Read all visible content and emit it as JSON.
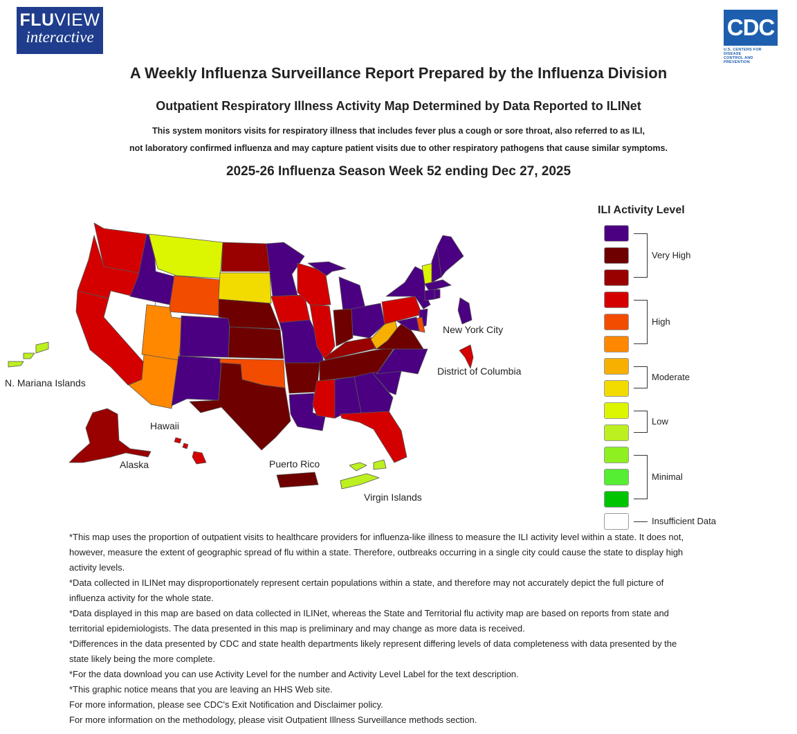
{
  "header": {
    "fluview_logo_bold": "FLU",
    "fluview_logo_rest": "VIEW",
    "fluview_logo_sub": "interactive",
    "cdc_logo_text": "CDC",
    "cdc_logo_sub_1": "U.S. CENTERS FOR DISEASE",
    "cdc_logo_sub_2": "CONTROL AND PREVENTION",
    "title": "A Weekly Influenza Surveillance Report Prepared by the Influenza Division",
    "subtitle": "Outpatient Respiratory Illness Activity Map Determined by Data Reported to ILINet",
    "description_1": "This system monitors visits for respiratory illness that includes fever plus a cough or sore throat, also referred to as ILI,",
    "description_2": "not laboratory confirmed influenza and may capture patient visits due to other respiratory pathogens that cause similar symptoms.",
    "season": "2025-26 Influenza Season Week 52 ending Dec 27, 2025"
  },
  "map": {
    "labels": {
      "new_york_city": "New York City",
      "district_of_columbia": "District of Columbia",
      "n_mariana_islands": "N. Mariana Islands",
      "hawaii": "Hawaii",
      "alaska": "Alaska",
      "puerto_rico": "Puerto Rico",
      "virgin_islands": "Virgin Islands"
    },
    "level_colors": {
      "13": "#4b0082",
      "12": "#6e0000",
      "11": "#990000",
      "10": "#d40000",
      "9": "#f24c00",
      "8": "#ff8800",
      "7": "#f7b000",
      "6": "#f2dc00",
      "5": "#dcf500",
      "4": "#bcf020",
      "3": "#8ef020",
      "2": "#55ee33",
      "1": "#00c400",
      "0": "#ffffff"
    },
    "state_levels": {
      "WA": 10,
      "OR": 10,
      "CA": 10,
      "NV": 0,
      "ID": 13,
      "MT": 5,
      "WY": 9,
      "UT": 8,
      "AZ": 8,
      "CO": 13,
      "NM": 13,
      "ND": 11,
      "SD": 6,
      "NE": 12,
      "KS": 12,
      "OK": 9,
      "TX": 12,
      "MN": 13,
      "IA": 10,
      "MO": 13,
      "AR": 12,
      "LA": 13,
      "WI": 10,
      "IL": 10,
      "MS": 10,
      "MI": 13,
      "IN": 12,
      "OH": 13,
      "KY": 11,
      "TN": 12,
      "AL": 13,
      "GA": 13,
      "FL": 10,
      "SC": 13,
      "NC": 13,
      "VA": 12,
      "WV": 7,
      "PA": 10,
      "NY": 13,
      "VT": 5,
      "NH": 13,
      "ME": 13,
      "MA": 13,
      "CT": 13,
      "RI": 13,
      "NJ": 13,
      "DE": 9,
      "MD": 13,
      "NYC": 13,
      "DC": 10,
      "AK": 11,
      "HI": 10,
      "PR": 12,
      "VI": 4,
      "MP": 4
    }
  },
  "legend": {
    "title": "ILI Activity Level",
    "groups": [
      {
        "label": "Very High"
      },
      {
        "label": "High"
      },
      {
        "label": "Moderate"
      },
      {
        "label": "Low"
      },
      {
        "label": "Minimal"
      },
      {
        "label": "Insufficient Data"
      }
    ]
  },
  "notes": [
    "*This map uses the proportion of outpatient visits to healthcare providers for influenza-like illness to measure the ILI activity level within a state. It does not, however, measure the extent of geographic spread of flu within a state. Therefore, outbreaks occurring in a single city could cause the state to display high activity levels.",
    "*Data collected in ILINet may disproportionately represent certain populations within a state, and therefore may not accurately depict the full picture of influenza activity for the whole state.",
    "*Data displayed in this map are based on data collected in ILINet, whereas the State and Territorial flu activity map are based on reports from state and territorial epidemiologists. The data presented in this map is preliminary and may change as more data is received.",
    "*Differences in the data presented by CDC and state health departments likely represent differing levels of data completeness with data presented by the state likely being the more complete.",
    "*For the data download you can use Activity Level for the number and Activity Level Label for the text description.",
    "*This graphic notice means that you are leaving an HHS Web site.",
    "For more information, please see CDC's Exit Notification and Disclaimer policy.",
    "For more information on the methodology, please visit Outpatient Illness Surveillance methods section."
  ]
}
